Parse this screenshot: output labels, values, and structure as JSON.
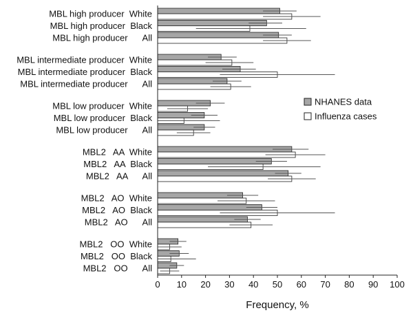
{
  "chart_data": {
    "type": "bar",
    "orientation": "horizontal",
    "xlabel": "Frequency, %",
    "xlim": [
      0,
      100
    ],
    "xticks": [
      0,
      10,
      20,
      30,
      40,
      50,
      60,
      70,
      80,
      90,
      100
    ],
    "grid": false,
    "legend_position": "right",
    "series": [
      {
        "name": "NHANES data",
        "color": "#a6a6a6"
      },
      {
        "name": "Influenza cases",
        "color": "#ffffff"
      }
    ],
    "categories": [
      {
        "label": "MBL high producer  White",
        "nhanes": 51,
        "nhanes_err": [
          44,
          58
        ],
        "influenza": 56,
        "influenza_err": [
          44,
          68
        ]
      },
      {
        "label": "MBL high producer  Black",
        "nhanes": 45.5,
        "nhanes_err": [
          38,
          52
        ],
        "influenza": 38.5,
        "influenza_err": [
          16,
          62
        ]
      },
      {
        "label": "MBL high producer      All",
        "nhanes": 50.5,
        "nhanes_err": [
          44,
          56
        ],
        "influenza": 54,
        "influenza_err": [
          44,
          64
        ]
      },
      {
        "label": "MBL intermediate producer  White",
        "nhanes": 26.5,
        "nhanes_err": [
          21,
          33
        ],
        "influenza": 31,
        "influenza_err": [
          20,
          40
        ]
      },
      {
        "label": "MBL intermediate producer  Black",
        "nhanes": 34.5,
        "nhanes_err": [
          27,
          41
        ],
        "influenza": 50,
        "influenza_err": [
          26,
          74
        ]
      },
      {
        "label": "MBL intermediate producer      All",
        "nhanes": 29,
        "nhanes_err": [
          23,
          35
        ],
        "influenza": 30.5,
        "influenza_err": [
          22,
          39
        ]
      },
      {
        "label": "MBL low producer  White",
        "nhanes": 22,
        "nhanes_err": [
          16,
          28
        ],
        "influenza": 12.5,
        "influenza_err": [
          4,
          21
        ]
      },
      {
        "label": "MBL low producer  Black",
        "nhanes": 19.5,
        "nhanes_err": [
          14,
          25
        ],
        "influenza": 11,
        "influenza_err": [
          0,
          26
        ]
      },
      {
        "label": "MBL low producer      All",
        "nhanes": 19.5,
        "nhanes_err": [
          15,
          24
        ],
        "influenza": 15,
        "influenza_err": [
          8,
          22
        ]
      },
      {
        "label": "MBL2   AA  White",
        "nhanes": 56,
        "nhanes_err": [
          48,
          63
        ],
        "influenza": 57.5,
        "influenza_err": [
          45,
          70
        ]
      },
      {
        "label": "MBL2   AA  Black",
        "nhanes": 47.5,
        "nhanes_err": [
          41,
          54
        ],
        "influenza": 44,
        "influenza_err": [
          21,
          68
        ]
      },
      {
        "label": "MBL2   AA      All",
        "nhanes": 54.5,
        "nhanes_err": [
          49,
          60
        ],
        "influenza": 56,
        "influenza_err": [
          46,
          66
        ]
      },
      {
        "label": "MBL2   AO  White",
        "nhanes": 35.5,
        "nhanes_err": [
          29,
          42
        ],
        "influenza": 37,
        "influenza_err": [
          25,
          49
        ]
      },
      {
        "label": "MBL2   AO  Black",
        "nhanes": 43.5,
        "nhanes_err": [
          37,
          50
        ],
        "influenza": 50,
        "influenza_err": [
          26,
          74
        ]
      },
      {
        "label": "MBL2   AO      All",
        "nhanes": 37.5,
        "nhanes_err": [
          32,
          43
        ],
        "influenza": 39,
        "influenza_err": [
          30,
          48
        ]
      },
      {
        "label": "MBL2   OO  White",
        "nhanes": 8.5,
        "nhanes_err": [
          5,
          12
        ],
        "influenza": 5,
        "influenza_err": [
          0,
          10
        ]
      },
      {
        "label": "MBL2   OO  Black",
        "nhanes": 9,
        "nhanes_err": [
          5,
          13
        ],
        "influenza": 5.5,
        "influenza_err": [
          0,
          16
        ]
      },
      {
        "label": "MBL2   OO      All",
        "nhanes": 8,
        "nhanes_err": [
          5,
          11
        ],
        "influenza": 5,
        "influenza_err": [
          1,
          9
        ]
      }
    ]
  }
}
